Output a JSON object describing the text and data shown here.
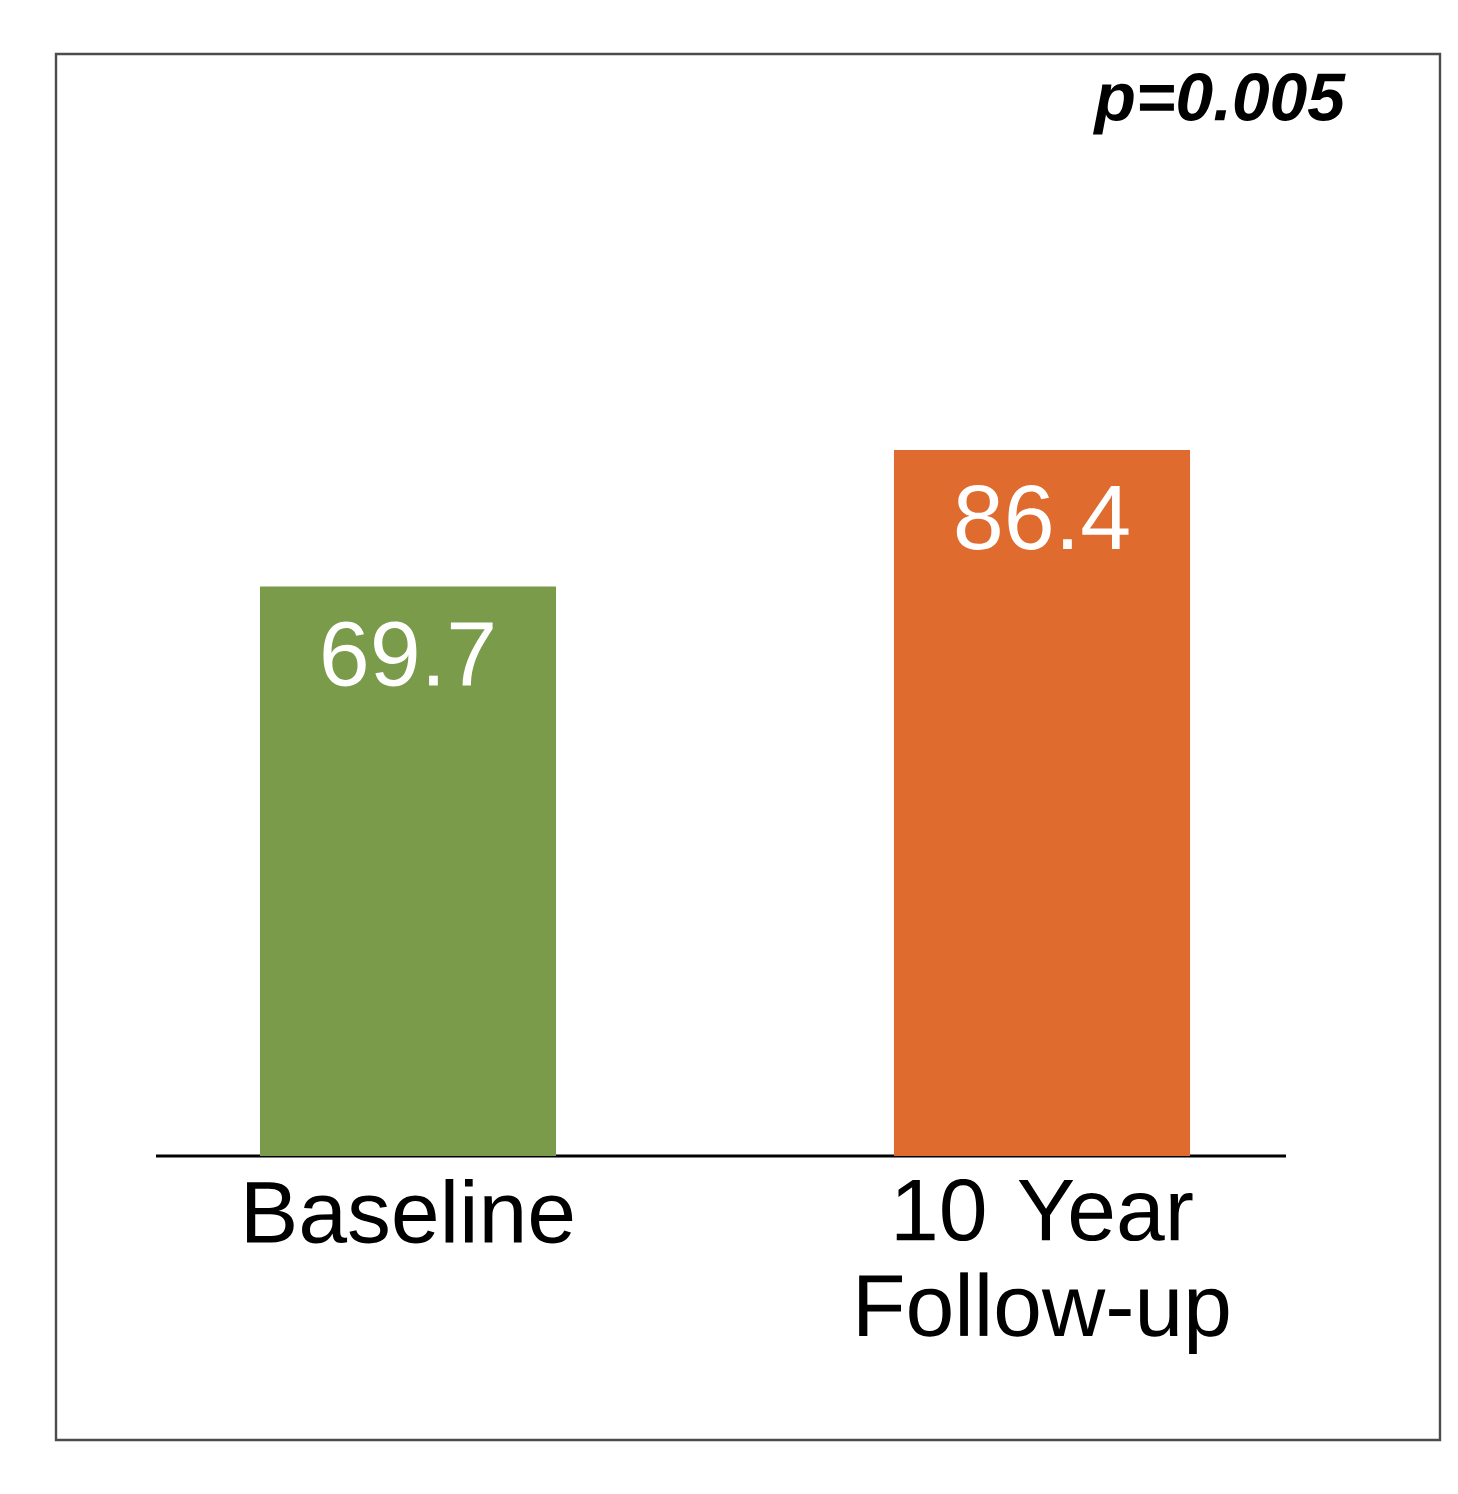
{
  "chart_data": {
    "type": "bar",
    "categories": [
      "Baseline",
      "10 Year Follow-up"
    ],
    "values": [
      69.7,
      86.4
    ],
    "colors": [
      "#7a9c4a",
      "#e06b2e"
    ],
    "data_labels": true,
    "annotations": [
      "p=0.005"
    ]
  }
}
